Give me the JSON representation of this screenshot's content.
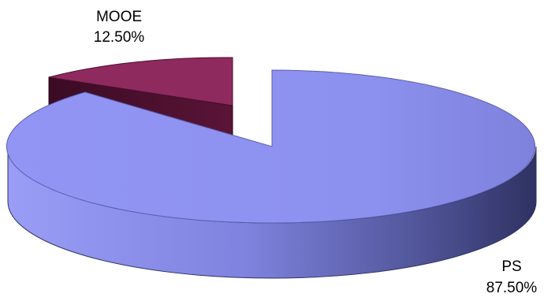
{
  "chart_data": {
    "type": "pie",
    "style": "3d-exploded",
    "title": "",
    "slices": [
      {
        "name": "PS",
        "value": 87.5,
        "label": "87.50%",
        "color": "#8f92f0",
        "side_color": "#6c70c4"
      },
      {
        "name": "MOOE",
        "value": 12.5,
        "label": "12.50%",
        "color": "#8e2a5e",
        "side_color": "#4e0f30"
      }
    ],
    "legend": "none"
  }
}
